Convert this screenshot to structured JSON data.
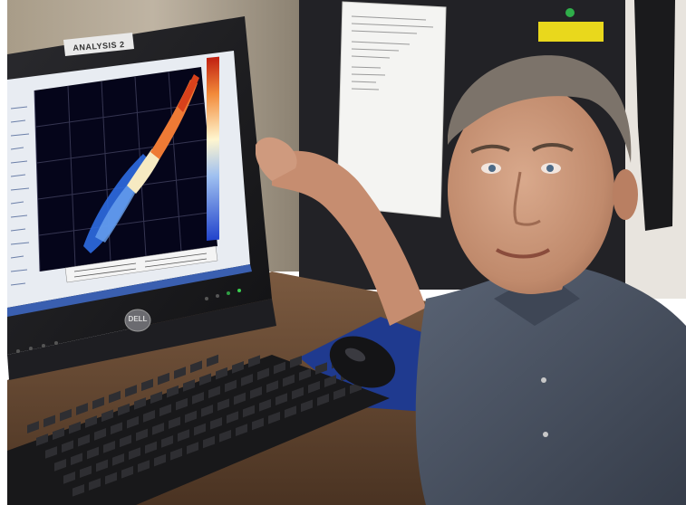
{
  "scene": {
    "monitor": {
      "label": "ANALYSIS 2",
      "brand": "DELL"
    },
    "colors": {
      "cubicle_wall": "#b8ad9c",
      "monitor_bezel": "#1c1c1e",
      "screen_plot_bg": "#05051a",
      "plot_low": "#2a6be0",
      "plot_mid": "#f4e8b0",
      "plot_high": "#e0451e",
      "shirt": "#4a5464",
      "skin": "#c9957a",
      "mouse_pad": "#1f3a8f",
      "desk": "#6a4a32"
    },
    "icons": [
      "monitor",
      "keyboard",
      "mouse",
      "mouse-pad",
      "paper-sheet",
      "person"
    ]
  }
}
